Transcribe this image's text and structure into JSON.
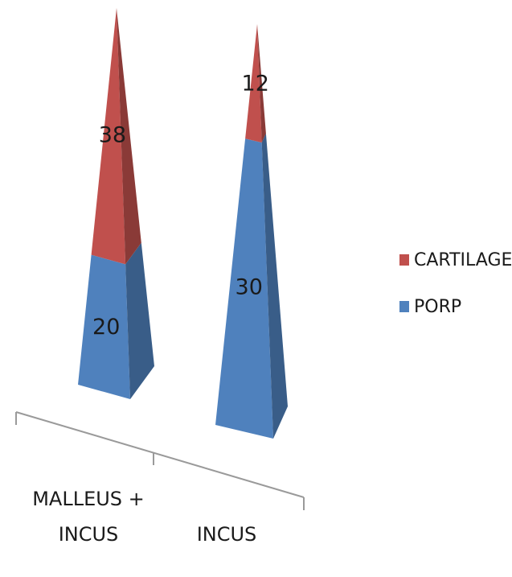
{
  "chart_data": {
    "type": "bar",
    "style": "3d-pyramid-stacked",
    "categories": [
      "MALLEUS +\nINCUS",
      "INCUS"
    ],
    "series": [
      {
        "name": "PORP",
        "values": [
          20,
          30
        ],
        "color": "#4f81bd"
      },
      {
        "name": "CARTILAGE",
        "values": [
          38,
          12
        ],
        "color": "#c0504d"
      }
    ],
    "title": "",
    "xlabel": "",
    "ylabel": "",
    "legend_position": "right",
    "grid": false
  }
}
